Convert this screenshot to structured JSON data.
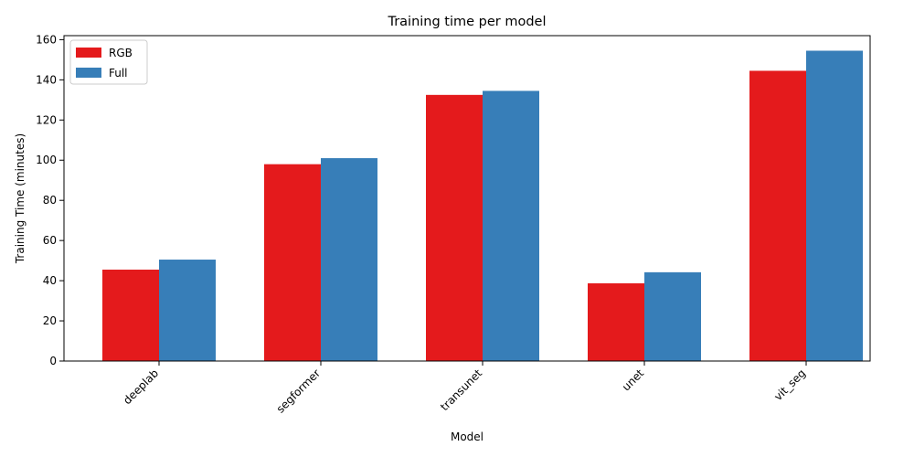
{
  "chart_data": {
    "type": "bar",
    "title": "Training time per model",
    "xlabel": "Model",
    "ylabel": "Training Time (minutes)",
    "categories": [
      "deeplab",
      "segformer",
      "transunet",
      "unet",
      "vit_seg"
    ],
    "series": [
      {
        "name": "RGB",
        "color": "#e41a1c",
        "values": [
          45.5,
          98,
          132.5,
          38.7,
          144.5
        ]
      },
      {
        "name": "Full",
        "color": "#377eb8",
        "values": [
          50.5,
          101,
          134.5,
          44.2,
          154.5
        ]
      }
    ],
    "ylim": [
      0,
      162
    ],
    "yticks": [
      0,
      20,
      40,
      60,
      80,
      100,
      120,
      140,
      160
    ],
    "grid": false,
    "legend": "top-left"
  }
}
